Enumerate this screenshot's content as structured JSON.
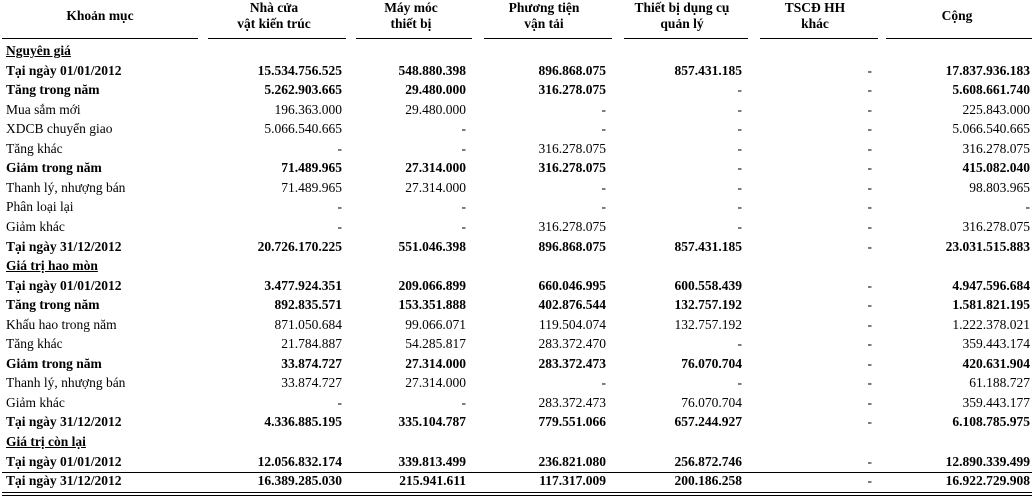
{
  "header": {
    "item": "Khoản mục",
    "col1": [
      "Nhà cửa",
      "vật kiến trúc"
    ],
    "col2": [
      "Máy móc",
      "thiết bị"
    ],
    "col3": [
      "Phương tiện",
      "vận tải"
    ],
    "col4": [
      "Thiết bị dụng cụ",
      "quản lý"
    ],
    "col5": [
      "TSCĐ HH",
      "khác"
    ],
    "col6": [
      "Cộng"
    ]
  },
  "rows": [
    {
      "label": "Nguyên giá",
      "style": "section",
      "v": [
        "",
        "",
        "",
        "",
        "",
        ""
      ]
    },
    {
      "label": "Tại ngày 01/01/2012",
      "style": "bold",
      "v": [
        "15.534.756.525",
        "548.880.398",
        "896.868.075",
        "857.431.185",
        "-",
        "17.837.936.183"
      ]
    },
    {
      "label": "Tăng trong năm",
      "style": "bold",
      "v": [
        "5.262.903.665",
        "29.480.000",
        "316.278.075",
        "-",
        "-",
        "5.608.661.740"
      ]
    },
    {
      "label": "Mua sắm mới",
      "style": "normal",
      "v": [
        "196.363.000",
        "29.480.000",
        "-",
        "-",
        "-",
        "225.843.000"
      ]
    },
    {
      "label": "XDCB chuyển giao",
      "style": "normal",
      "v": [
        "5.066.540.665",
        "-",
        "-",
        "-",
        "-",
        "5.066.540.665"
      ]
    },
    {
      "label": "Tăng khác",
      "style": "normal",
      "v": [
        "-",
        "-",
        "316.278.075",
        "-",
        "-",
        "316.278.075"
      ]
    },
    {
      "label": "Giảm trong năm",
      "style": "bold",
      "v": [
        "71.489.965",
        "27.314.000",
        "316.278.075",
        "-",
        "-",
        "415.082.040"
      ]
    },
    {
      "label": "Thanh lý, nhượng bán",
      "style": "normal",
      "v": [
        "71.489.965",
        "27.314.000",
        "-",
        "-",
        "-",
        "98.803.965"
      ]
    },
    {
      "label": "Phân loại lại",
      "style": "normal",
      "v": [
        "-",
        "-",
        "-",
        "-",
        "-",
        "-"
      ]
    },
    {
      "label": "Giảm khác",
      "style": "normal",
      "v": [
        "-",
        "-",
        "316.278.075",
        "-",
        "-",
        "316.278.075"
      ]
    },
    {
      "label": "Tại ngày 31/12/2012",
      "style": "bold",
      "v": [
        "20.726.170.225",
        "551.046.398",
        "896.868.075",
        "857.431.185",
        "-",
        "23.031.515.883"
      ]
    },
    {
      "label": "Giá trị hao mòn",
      "style": "section",
      "v": [
        "",
        "",
        "",
        "",
        "",
        ""
      ]
    },
    {
      "label": "Tại ngày 01/01/2012",
      "style": "bold",
      "v": [
        "3.477.924.351",
        "209.066.899",
        "660.046.995",
        "600.558.439",
        "-",
        "4.947.596.684"
      ]
    },
    {
      "label": "Tăng trong năm",
      "style": "bold",
      "v": [
        "892.835.571",
        "153.351.888",
        "402.876.544",
        "132.757.192",
        "-",
        "1.581.821.195"
      ]
    },
    {
      "label": "Khấu hao trong năm",
      "style": "normal",
      "v": [
        "871.050.684",
        "99.066.071",
        "119.504.074",
        "132.757.192",
        "-",
        "1.222.378.021"
      ]
    },
    {
      "label": "Tăng khác",
      "style": "normal",
      "v": [
        "21.784.887",
        "54.285.817",
        "283.372.470",
        "-",
        "-",
        "359.443.174"
      ]
    },
    {
      "label": "Giảm trong năm",
      "style": "bold",
      "v": [
        "33.874.727",
        "27.314.000",
        "283.372.473",
        "76.070.704",
        "-",
        "420.631.904"
      ]
    },
    {
      "label": "Thanh lý, nhượng bán",
      "style": "normal",
      "v": [
        "33.874.727",
        "27.314.000",
        "-",
        "-",
        "-",
        "61.188.727"
      ]
    },
    {
      "label": "Giảm khác",
      "style": "normal",
      "v": [
        "-",
        "-",
        "283.372.473",
        "76.070.704",
        "-",
        "359.443.177"
      ]
    },
    {
      "label": "Tại ngày 31/12/2012",
      "style": "bold",
      "v": [
        "4.336.885.195",
        "335.104.787",
        "779.551.066",
        "657.244.927",
        "-",
        "6.108.785.975"
      ]
    },
    {
      "label": "Giá trị còn lại",
      "style": "section",
      "v": [
        "",
        "",
        "",
        "",
        "",
        ""
      ]
    },
    {
      "label": "Tại ngày 01/01/2012",
      "style": "bold",
      "v": [
        "12.056.832.174",
        "339.813.499",
        "236.821.080",
        "256.872.746",
        "-",
        "12.890.339.499"
      ]
    },
    {
      "label": "Tại ngày 31/12/2012",
      "style": "bold",
      "v": [
        "16.389.285.030",
        "215.941.611",
        "117.317.009",
        "200.186.258",
        "-",
        "16.922.729.908"
      ]
    }
  ]
}
